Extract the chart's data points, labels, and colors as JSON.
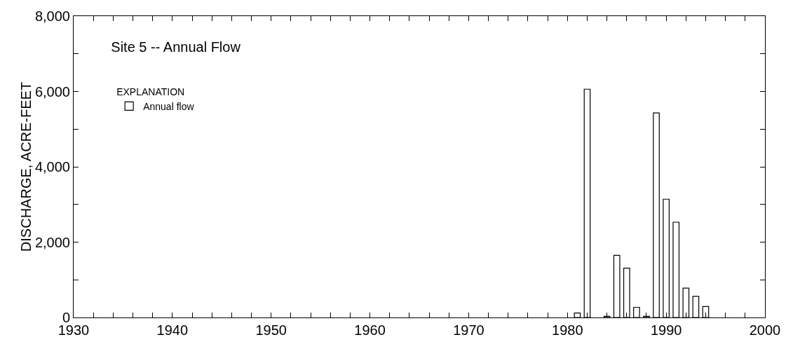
{
  "chart_data": {
    "type": "bar",
    "title": "Site 5 -- Annual Flow",
    "ylabel": "DISCHARGE, ACRE-FEET",
    "legend_title": "EXPLANATION",
    "x": [
      1981,
      1982,
      1983,
      1984,
      1985,
      1986,
      1987,
      1988,
      1989,
      1990,
      1991,
      1992,
      1993,
      1994
    ],
    "series": [
      {
        "name": "Annual flow",
        "color": "#ffffff",
        "values": [
          120,
          6060,
          null,
          30,
          1650,
          1310,
          270,
          30,
          5430,
          3140,
          2530,
          780,
          560,
          290
        ]
      }
    ],
    "xlim": [
      1930,
      2000
    ],
    "xticks": [
      1930,
      {
        "value": 1932,
        "label": null
      },
      {
        "value": 1934,
        "label": null
      },
      {
        "value": 1936,
        "label": null
      },
      {
        "value": 1938,
        "label": null
      },
      1940,
      {
        "value": 1942,
        "label": null
      },
      {
        "value": 1944,
        "label": null
      },
      {
        "value": 1946,
        "label": null
      },
      {
        "value": 1948,
        "label": null
      },
      1950,
      {
        "value": 1952,
        "label": null
      },
      {
        "value": 1954,
        "label": null
      },
      {
        "value": 1956,
        "label": null
      },
      {
        "value": 1958,
        "label": null
      },
      1960,
      {
        "value": 1962,
        "label": null
      },
      {
        "value": 1964,
        "label": null
      },
      {
        "value": 1966,
        "label": null
      },
      {
        "value": 1968,
        "label": null
      },
      1970,
      {
        "value": 1972,
        "label": null
      },
      {
        "value": 1974,
        "label": null
      },
      {
        "value": 1976,
        "label": null
      },
      {
        "value": 1978,
        "label": null
      },
      1980,
      {
        "value": 1982,
        "label": null
      },
      {
        "value": 1984,
        "label": null
      },
      {
        "value": 1986,
        "label": null
      },
      {
        "value": 1988,
        "label": null
      },
      1990,
      {
        "value": 1992,
        "label": null
      },
      {
        "value": 1994,
        "label": null
      },
      {
        "value": 1996,
        "label": null
      },
      {
        "value": 1998,
        "label": null
      },
      2000
    ],
    "ylim": [
      0,
      8000
    ],
    "yticks": [
      {
        "value": 0,
        "label": "0"
      },
      {
        "value": 1000,
        "label": null
      },
      {
        "value": 2000,
        "label": "2,000"
      },
      {
        "value": 3000,
        "label": null
      },
      {
        "value": 4000,
        "label": "4,000"
      },
      {
        "value": 5000,
        "label": null
      },
      {
        "value": 6000,
        "label": "6,000"
      },
      {
        "value": 7000,
        "label": null
      },
      {
        "value": 8000,
        "label": "8,000"
      }
    ],
    "grid": false,
    "legend": "top left"
  }
}
